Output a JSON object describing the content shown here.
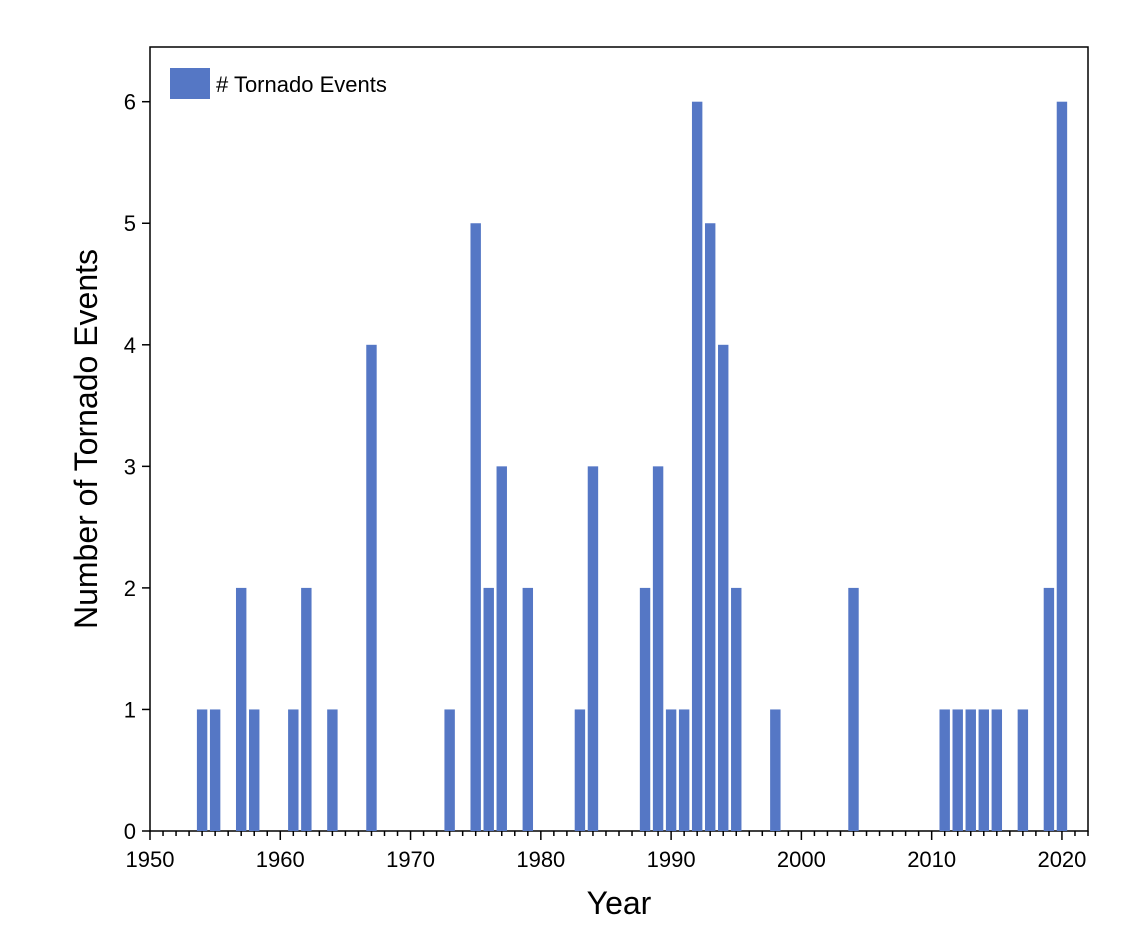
{
  "chart_data": {
    "type": "bar",
    "xlabel": "Year",
    "ylabel": "Number of Tornado Events",
    "xlim": [
      1950,
      2022
    ],
    "ylim": [
      0,
      6.45
    ],
    "x_ticks": [
      1950,
      1960,
      1970,
      1980,
      1990,
      2000,
      2010,
      2020
    ],
    "y_ticks": [
      0,
      1,
      2,
      3,
      4,
      5,
      6
    ],
    "grid": false,
    "legend_position": "top-left",
    "colors": {
      "bar": "#5577c5"
    },
    "series": [
      {
        "name": "# Tornado Events",
        "x": [
          1954,
          1955,
          1957,
          1958,
          1961,
          1962,
          1964,
          1967,
          1973,
          1975,
          1976,
          1977,
          1979,
          1983,
          1984,
          1988,
          1989,
          1990,
          1991,
          1992,
          1993,
          1994,
          1995,
          1998,
          2004,
          2011,
          2012,
          2013,
          2014,
          2015,
          2017,
          2019,
          2020
        ],
        "values": [
          1,
          1,
          2,
          1,
          1,
          2,
          1,
          4,
          1,
          5,
          2,
          3,
          2,
          1,
          3,
          2,
          3,
          1,
          1,
          6,
          5,
          4,
          2,
          1,
          2,
          1,
          1,
          1,
          1,
          1,
          1,
          2,
          6
        ]
      }
    ]
  }
}
